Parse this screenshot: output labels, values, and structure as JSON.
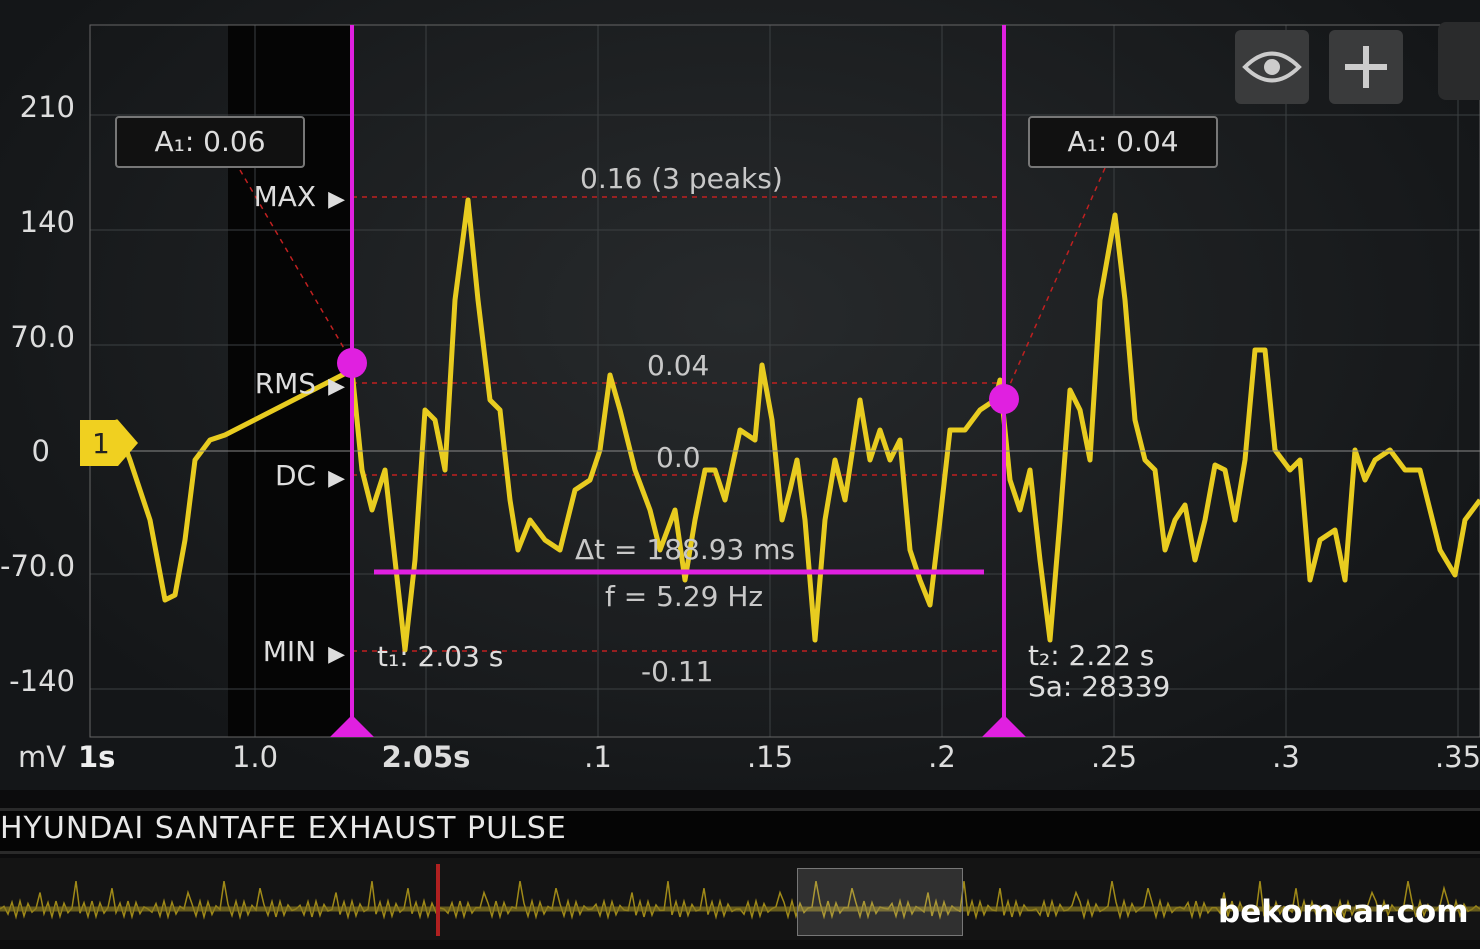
{
  "y_axis": {
    "unit": "mV",
    "ticks": [
      "210",
      "140",
      "70.0",
      "0",
      "-70.0",
      "-140"
    ]
  },
  "x_axis": {
    "scale": "1s",
    "ticks": [
      "1.0",
      "2.05s",
      ".1",
      ".15",
      ".2",
      ".25",
      ".3",
      ".35"
    ]
  },
  "channel": {
    "label": "1",
    "color": "#f0d020"
  },
  "markers": {
    "max": "MAX",
    "rms": "RMS",
    "dc": "DC",
    "min": "MIN",
    "arrow": "▶"
  },
  "cursor1": {
    "amplitude": "A₁: 0.06",
    "time": "t₁: 2.03 s"
  },
  "cursor2": {
    "amplitude": "A₁: 0.04",
    "time": "t₂: 2.22 s",
    "samples": "Sa: 28339"
  },
  "measurements": {
    "max": "0.16 (3 peaks)",
    "rms": "0.04",
    "dc": "0.0",
    "min": "-0.11",
    "delta_t": "Δt = 188.93 ms",
    "frequency": "f = 5.29 Hz"
  },
  "toolbar": {
    "eye": "eye-icon",
    "add": "plus-icon"
  },
  "title": "HYUNDAI SANTAFE EXHAUST PULSE",
  "watermark": "bekomcar.com",
  "colors": {
    "cursor": "#e020e0",
    "trace": "#e8cc20",
    "ref": "#d02020"
  }
}
